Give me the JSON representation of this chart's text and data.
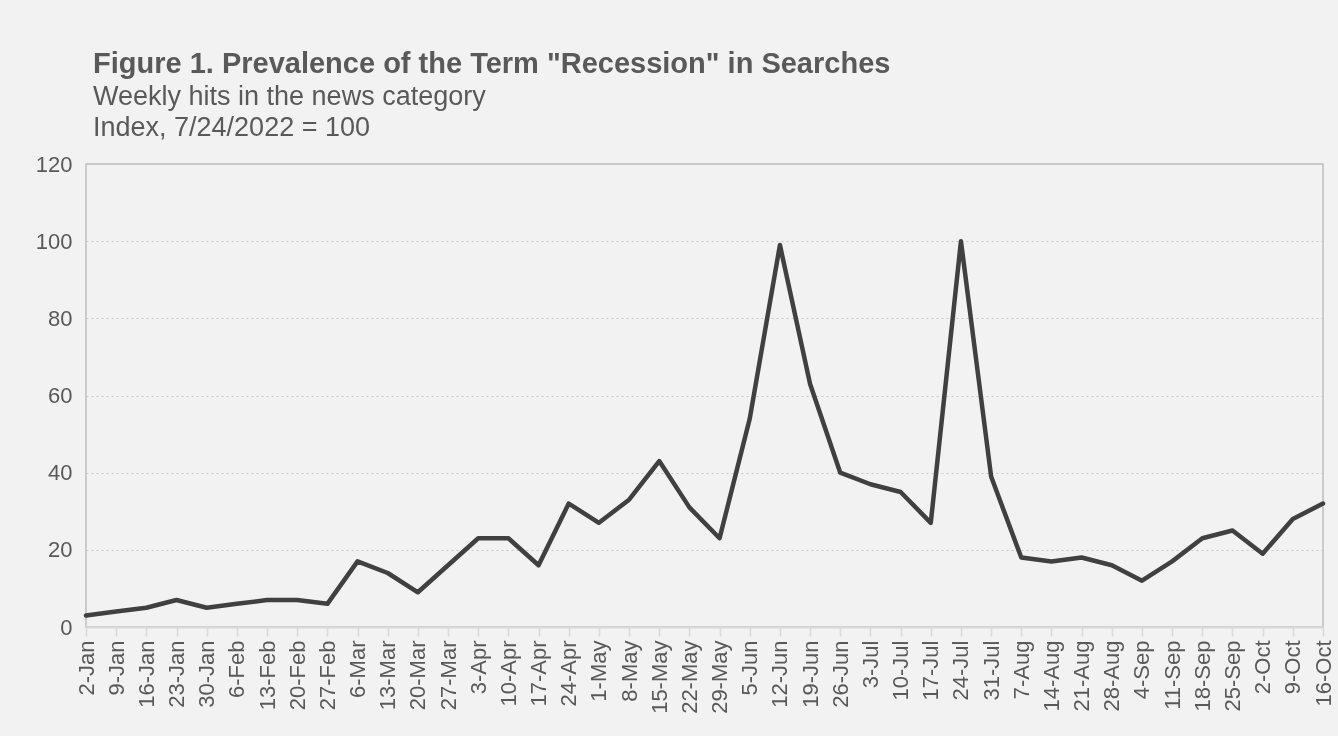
{
  "chart_data": {
    "type": "line",
    "title": "Figure 1. Prevalence of the Term \"Recession\" in Searches",
    "subtitle": "Weekly hits in the news category",
    "ylabel": "Index, 7/24/2022 = 100",
    "categories": [
      "2-Jan",
      "9-Jan",
      "16-Jan",
      "23-Jan",
      "30-Jan",
      "6-Feb",
      "13-Feb",
      "20-Feb",
      "27-Feb",
      "6-Mar",
      "13-Mar",
      "20-Mar",
      "27-Mar",
      "3-Apr",
      "10-Apr",
      "17-Apr",
      "24-Apr",
      "1-May",
      "8-May",
      "15-May",
      "22-May",
      "29-May",
      "5-Jun",
      "12-Jun",
      "19-Jun",
      "26-Jun",
      "3-Jul",
      "10-Jul",
      "17-Jul",
      "24-Jul",
      "31-Jul",
      "7-Aug",
      "14-Aug",
      "21-Aug",
      "28-Aug",
      "4-Sep",
      "11-Sep",
      "18-Sep",
      "25-Sep",
      "2-Oct",
      "9-Oct",
      "16-Oct"
    ],
    "series": [
      {
        "color": "#404040",
        "values": [
          3,
          4,
          5,
          7,
          5,
          6,
          7,
          7,
          6,
          17,
          14,
          9,
          16,
          23,
          23,
          16,
          32,
          27,
          33,
          43,
          31,
          23,
          54,
          99,
          63,
          40,
          37,
          35,
          27,
          100,
          39,
          18,
          17,
          18,
          16,
          12,
          17,
          23,
          25,
          19,
          28,
          32
        ]
      }
    ],
    "ylim": [
      0,
      120
    ],
    "yticks": [
      0,
      20,
      40,
      60,
      80,
      100,
      120
    ],
    "grid": "y",
    "line_style": "solid"
  }
}
